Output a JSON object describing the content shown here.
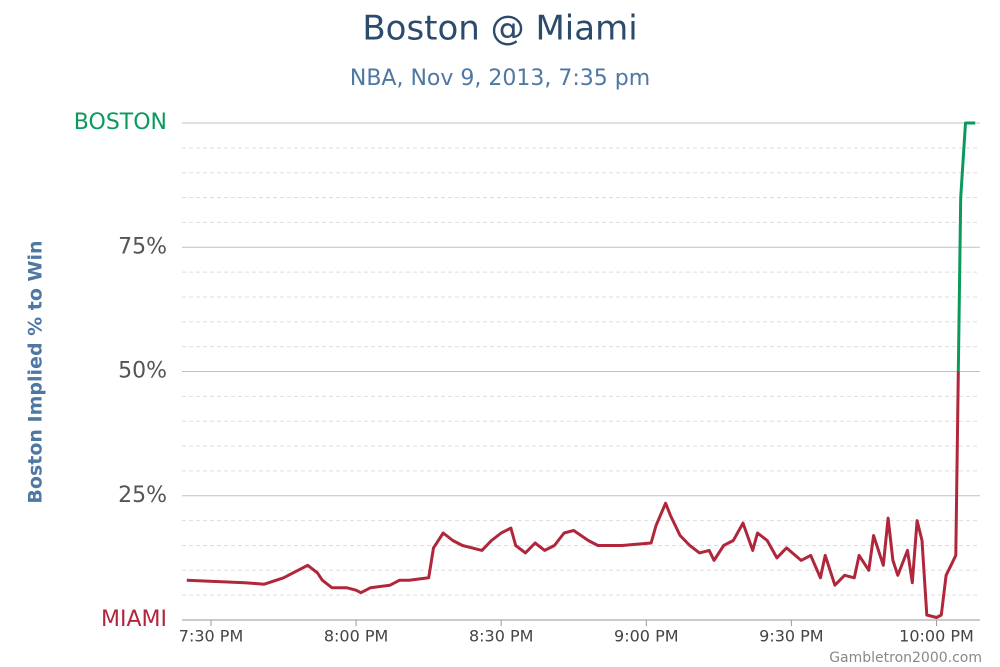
{
  "chart_data": {
    "type": "line",
    "title": "Boston @ Miami",
    "subtitle": "NBA, Nov 9, 2013, 7:35 pm",
    "y_label": "Boston Implied % to Win",
    "credit": "Gambletron2000.com",
    "xlim": [
      "7:24 PM",
      "10:09 PM"
    ],
    "xticks": [
      "7:30 PM",
      "8:00 PM",
      "8:30 PM",
      "9:00 PM",
      "9:30 PM",
      "10:00 PM"
    ],
    "ylim": [
      0,
      100
    ],
    "yticks": [
      {
        "value": 0,
        "label": "MIAMI"
      },
      {
        "value": 25,
        "label": "25%"
      },
      {
        "value": 50,
        "label": "50%"
      },
      {
        "value": 75,
        "label": "75%"
      },
      {
        "value": 100,
        "label": "BOSTON"
      }
    ],
    "yminorticks": [
      5,
      10,
      15,
      20,
      30,
      35,
      40,
      45,
      55,
      60,
      65,
      70,
      80,
      85,
      90,
      95
    ],
    "grid": true,
    "threshold": 50,
    "color_above": "#0b9a5c",
    "color_below": "#b0263a",
    "x": [
      "7:25 PM",
      "7:37 PM",
      "7:41 PM",
      "7:45 PM",
      "7:47 PM",
      "7:49 PM",
      "7:50 PM",
      "7:52 PM",
      "7:53 PM",
      "7:55 PM",
      "7:58 PM",
      "8:00 PM",
      "8:01 PM",
      "8:03 PM",
      "8:07 PM",
      "8:09 PM",
      "8:11 PM",
      "8:15 PM",
      "8:16 PM",
      "8:18 PM",
      "8:20 PM",
      "8:22 PM",
      "8:24 PM",
      "8:26 PM",
      "8:28 PM",
      "8:30 PM",
      "8:32 PM",
      "8:33 PM",
      "8:35 PM",
      "8:37 PM",
      "8:39 PM",
      "8:41 PM",
      "8:43 PM",
      "8:45 PM",
      "8:48 PM",
      "8:50 PM",
      "8:55 PM",
      "9:01 PM",
      "9:02 PM",
      "9:04 PM",
      "9:05 PM",
      "9:07 PM",
      "9:09 PM",
      "9:11 PM",
      "9:13 PM",
      "9:14 PM",
      "9:16 PM",
      "9:18 PM",
      "9:20 PM",
      "9:22 PM",
      "9:23 PM",
      "9:25 PM",
      "9:27 PM",
      "9:29 PM",
      "9:32 PM",
      "9:34 PM",
      "9:36 PM",
      "9:37 PM",
      "9:39 PM",
      "9:41 PM",
      "9:43 PM",
      "9:44 PM",
      "9:46 PM",
      "9:47 PM",
      "9:49 PM",
      "9:50 PM",
      "9:51 PM",
      "9:52 PM",
      "9:54 PM",
      "9:55 PM",
      "9:56 PM",
      "9:57 PM",
      "9:58 PM",
      "10:00 PM",
      "10:01 PM",
      "10:02 PM",
      "10:03 PM",
      "10:04 PM",
      "10:05 PM",
      "10:06 PM",
      "10:08 PM"
    ],
    "values": [
      8,
      7.5,
      7.2,
      8.5,
      9.5,
      10.5,
      11,
      9.5,
      8,
      6.5,
      6.5,
      6,
      5.5,
      6.5,
      7,
      8,
      8,
      8.5,
      14.5,
      17.5,
      16,
      15,
      14.5,
      14,
      16,
      17.5,
      18.5,
      15,
      13.5,
      15.5,
      14,
      15,
      17.5,
      18,
      16,
      15,
      15,
      15.5,
      19,
      23.5,
      21,
      17,
      15,
      13.5,
      14,
      12,
      15,
      16,
      19.5,
      14,
      17.5,
      16,
      12.5,
      14.5,
      12,
      13,
      8.5,
      13,
      7,
      9,
      8.5,
      13,
      10,
      17,
      11,
      20.5,
      12,
      9,
      14,
      7.5,
      20,
      16,
      1,
      0.5,
      1,
      9,
      11,
      13,
      85,
      100,
      100
    ]
  }
}
